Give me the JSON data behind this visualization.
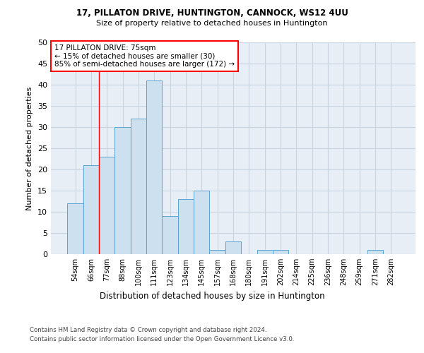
{
  "title1": "17, PILLATON DRIVE, HUNTINGTON, CANNOCK, WS12 4UU",
  "title2": "Size of property relative to detached houses in Huntington",
  "xlabel": "Distribution of detached houses by size in Huntington",
  "ylabel": "Number of detached properties",
  "footer1": "Contains HM Land Registry data © Crown copyright and database right 2024.",
  "footer2": "Contains public sector information licensed under the Open Government Licence v3.0.",
  "categories": [
    "54sqm",
    "66sqm",
    "77sqm",
    "88sqm",
    "100sqm",
    "111sqm",
    "123sqm",
    "134sqm",
    "145sqm",
    "157sqm",
    "168sqm",
    "180sqm",
    "191sqm",
    "202sqm",
    "214sqm",
    "225sqm",
    "236sqm",
    "248sqm",
    "259sqm",
    "271sqm",
    "282sqm"
  ],
  "values": [
    12,
    21,
    23,
    30,
    32,
    41,
    9,
    13,
    15,
    1,
    3,
    0,
    1,
    1,
    0,
    0,
    0,
    0,
    0,
    1,
    0
  ],
  "bar_color": "#cce0f0",
  "bar_edge_color": "#5ba3d0",
  "annotation_text": "17 PILLATON DRIVE: 75sqm\n← 15% of detached houses are smaller (30)\n85% of semi-detached houses are larger (172) →",
  "annotation_box_color": "white",
  "annotation_box_edge_color": "red",
  "ylim": [
    0,
    50
  ],
  "yticks": [
    0,
    5,
    10,
    15,
    20,
    25,
    30,
    35,
    40,
    45,
    50
  ],
  "grid_color": "#c8d4e0",
  "background_color": "#e8eef5",
  "red_line_x": 1.5
}
